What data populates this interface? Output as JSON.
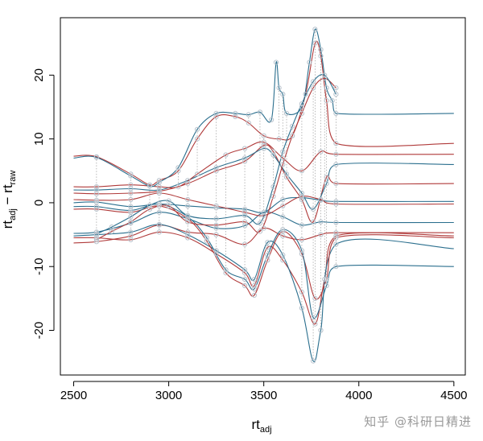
{
  "chart_data": {
    "type": "line",
    "title": "",
    "xlabel": {
      "main": "rt",
      "sub": "adj"
    },
    "ylabel": {
      "main_a": "rt",
      "sub_a": "adj",
      "sep": " − ",
      "main_b": "rt",
      "sub_b": "raw"
    },
    "xlim": [
      2430,
      4560
    ],
    "ylim": [
      -27,
      29
    ],
    "xticks": [
      2500,
      3000,
      3500,
      4000,
      4500
    ],
    "yticks": [
      -20,
      -10,
      0,
      10,
      20
    ],
    "grid": false,
    "legend": "none",
    "point_color": "#b8c2cc",
    "dotted_color": "#a8a8a8",
    "series": [
      {
        "color": "#2b6f8e",
        "points": [
          [
            2500,
            -4.8
          ],
          [
            2620,
            -4.6
          ],
          [
            2800,
            -3.2
          ],
          [
            2950,
            -1.5
          ],
          [
            3100,
            -2.5
          ],
          [
            3250,
            -4.0
          ],
          [
            3400,
            -3.6
          ],
          [
            3500,
            -1.5
          ],
          [
            3600,
            -2.2
          ],
          [
            3700,
            -3.5
          ],
          [
            3800,
            -3.0
          ],
          [
            3880,
            -3.1
          ],
          [
            4500,
            -3.1
          ]
        ]
      },
      {
        "color": "#b03a3a",
        "points": [
          [
            2500,
            -6.3
          ],
          [
            2620,
            -6.1
          ],
          [
            2800,
            -5.2
          ],
          [
            2950,
            -3.5
          ],
          [
            3100,
            -4.6
          ],
          [
            3250,
            -5.0
          ],
          [
            3400,
            -6.5
          ],
          [
            3500,
            -4.0
          ],
          [
            3600,
            -5.2
          ],
          [
            3700,
            -5.8
          ],
          [
            3800,
            -5.0
          ],
          [
            3880,
            -4.7
          ],
          [
            4500,
            -4.7
          ]
        ]
      },
      {
        "color": "#b03a3a",
        "points": [
          [
            2500,
            -5.5
          ],
          [
            2620,
            -5.5
          ],
          [
            2800,
            -5.8
          ],
          [
            2950,
            -4.6
          ],
          [
            3100,
            -5.5
          ],
          [
            3250,
            -8.0
          ],
          [
            3400,
            -11.0
          ],
          [
            3450,
            -13.0
          ],
          [
            3520,
            -7.0
          ],
          [
            3600,
            -9.0
          ],
          [
            3700,
            -14.0
          ],
          [
            3770,
            -19.0
          ],
          [
            3820,
            -12.0
          ],
          [
            3880,
            -5.2
          ],
          [
            4500,
            -5.2
          ]
        ]
      },
      {
        "color": "#2b6f8e",
        "points": [
          [
            2500,
            -5.2
          ],
          [
            2620,
            -5.0
          ],
          [
            2800,
            -4.6
          ],
          [
            2950,
            -3.4
          ],
          [
            3100,
            -5.0
          ],
          [
            3250,
            -7.5
          ],
          [
            3400,
            -10.5
          ],
          [
            3450,
            -12.0
          ],
          [
            3520,
            -6.2
          ],
          [
            3600,
            -8.2
          ],
          [
            3700,
            -16.5
          ],
          [
            3760,
            -24.8
          ],
          [
            3800,
            -20.0
          ],
          [
            3880,
            -6.5
          ],
          [
            4500,
            -7.2
          ]
        ]
      },
      {
        "color": "#b03a3a",
        "points": [
          [
            2500,
            -1.0
          ],
          [
            2620,
            -1.0
          ],
          [
            2800,
            -1.5
          ],
          [
            2950,
            -0.5
          ],
          [
            3100,
            -2.5
          ],
          [
            3200,
            -6.0
          ],
          [
            3300,
            -11.0
          ],
          [
            3400,
            -13.0
          ],
          [
            3450,
            -14.5
          ],
          [
            3520,
            -9.0
          ],
          [
            3600,
            -4.5
          ],
          [
            3700,
            -8.0
          ],
          [
            3770,
            -15.0
          ],
          [
            3830,
            -12.0
          ],
          [
            3880,
            -5.5
          ],
          [
            4500,
            -5.5
          ]
        ]
      },
      {
        "color": "#2b6f8e",
        "points": [
          [
            2500,
            -0.6
          ],
          [
            2620,
            -0.6
          ],
          [
            2800,
            -1.2
          ],
          [
            2950,
            -0.2
          ],
          [
            3100,
            -2.2
          ],
          [
            3200,
            -5.5
          ],
          [
            3300,
            -10.5
          ],
          [
            3400,
            -12.0
          ],
          [
            3450,
            -13.5
          ],
          [
            3520,
            -8.2
          ],
          [
            3600,
            -4.2
          ],
          [
            3700,
            -7.5
          ],
          [
            3760,
            -18.0
          ],
          [
            3830,
            -13.0
          ],
          [
            3880,
            -10.0
          ],
          [
            4500,
            -10.0
          ]
        ]
      },
      {
        "color": "#2b6f8e",
        "points": [
          [
            2500,
            0.0
          ],
          [
            2620,
            0.1
          ],
          [
            2800,
            -0.6
          ],
          [
            2950,
            -0.2
          ],
          [
            3100,
            -0.5
          ],
          [
            3250,
            -0.8
          ],
          [
            3400,
            -1.0
          ],
          [
            3500,
            -1.5
          ],
          [
            3600,
            0.5
          ],
          [
            3700,
            0.8
          ],
          [
            3800,
            0.4
          ],
          [
            3880,
            0.2
          ],
          [
            4500,
            0.2
          ]
        ]
      },
      {
        "color": "#b03a3a",
        "points": [
          [
            2500,
            0.5
          ],
          [
            2620,
            0.4
          ],
          [
            2800,
            0.5
          ],
          [
            2950,
            1.5
          ],
          [
            3100,
            0.5
          ],
          [
            3250,
            -0.5
          ],
          [
            3400,
            -1.5
          ],
          [
            3500,
            -2.0
          ],
          [
            3600,
            -0.5
          ],
          [
            3700,
            1.0
          ],
          [
            3800,
            0.5
          ],
          [
            3880,
            -0.2
          ],
          [
            4500,
            -0.2
          ]
        ]
      },
      {
        "color": "#b03a3a",
        "points": [
          [
            2500,
            1.5
          ],
          [
            2620,
            1.4
          ],
          [
            2800,
            1.5
          ],
          [
            2950,
            1.8
          ],
          [
            3100,
            3.0
          ],
          [
            3250,
            5.0
          ],
          [
            3400,
            6.5
          ],
          [
            3500,
            9.0
          ],
          [
            3550,
            8.0
          ],
          [
            3620,
            4.0
          ],
          [
            3700,
            0.5
          ],
          [
            3760,
            -3.0
          ],
          [
            3830,
            4.0
          ],
          [
            3880,
            3.0
          ],
          [
            4500,
            3.0
          ]
        ]
      },
      {
        "color": "#2b6f8e",
        "points": [
          [
            2500,
            2.0
          ],
          [
            2620,
            2.0
          ],
          [
            2800,
            2.2
          ],
          [
            2950,
            2.0
          ],
          [
            3100,
            3.5
          ],
          [
            3250,
            5.5
          ],
          [
            3400,
            7.0
          ],
          [
            3500,
            8.5
          ],
          [
            3550,
            7.5
          ],
          [
            3620,
            4.5
          ],
          [
            3700,
            1.5
          ],
          [
            3760,
            -1.0
          ],
          [
            3830,
            3.0
          ],
          [
            3880,
            6.0
          ],
          [
            4500,
            6.0
          ]
        ]
      },
      {
        "color": "#b03a3a",
        "points": [
          [
            2500,
            2.5
          ],
          [
            2620,
            2.5
          ],
          [
            2800,
            2.8
          ],
          [
            2950,
            2.5
          ],
          [
            3050,
            2.5
          ],
          [
            3150,
            4.5
          ],
          [
            3300,
            7.5
          ],
          [
            3400,
            8.5
          ],
          [
            3500,
            9.5
          ],
          [
            3600,
            7.0
          ],
          [
            3700,
            5.0
          ],
          [
            3800,
            8.0
          ],
          [
            3880,
            7.6
          ],
          [
            4500,
            7.6
          ]
        ]
      },
      {
        "color": "#b03a3a",
        "points": [
          [
            2500,
            7.3
          ],
          [
            2620,
            7.2
          ],
          [
            2800,
            4.5
          ],
          [
            2900,
            2.8
          ],
          [
            2950,
            3.5
          ],
          [
            3050,
            5.0
          ],
          [
            3150,
            10.0
          ],
          [
            3250,
            13.5
          ],
          [
            3350,
            13.5
          ],
          [
            3420,
            12.5
          ],
          [
            3500,
            10.5
          ],
          [
            3580,
            10.0
          ],
          [
            3650,
            10.5
          ],
          [
            3720,
            17.0
          ],
          [
            3770,
            25.0
          ],
          [
            3800,
            23.0
          ],
          [
            3830,
            16.0
          ],
          [
            3880,
            9.3
          ],
          [
            4500,
            9.3
          ]
        ]
      },
      {
        "color": "#2b6f8e",
        "points": [
          [
            2500,
            7.0
          ],
          [
            2620,
            7.1
          ],
          [
            2800,
            4.2
          ],
          [
            2900,
            2.6
          ],
          [
            2950,
            3.2
          ],
          [
            3050,
            5.5
          ],
          [
            3150,
            11.5
          ],
          [
            3250,
            14.0
          ],
          [
            3350,
            14.0
          ],
          [
            3420,
            13.8
          ],
          [
            3480,
            14.2
          ],
          [
            3540,
            13.0
          ],
          [
            3565,
            22.0
          ],
          [
            3580,
            18.0
          ],
          [
            3600,
            17.0
          ],
          [
            3620,
            14.0
          ],
          [
            3700,
            15.0
          ],
          [
            3740,
            22.0
          ],
          [
            3770,
            27.2
          ],
          [
            3800,
            24.0
          ],
          [
            3830,
            18.0
          ],
          [
            3860,
            16.0
          ],
          [
            3880,
            14.0
          ],
          [
            4500,
            14.0
          ]
        ]
      },
      {
        "color": "#b03a3a",
        "points": [
          [
            2620,
            -5.8
          ],
          [
            2700,
            -4.5
          ],
          [
            2800,
            -3.0
          ],
          [
            2900,
            -1.0
          ],
          [
            3000,
            -0.5
          ],
          [
            3100,
            -3.0
          ],
          [
            3250,
            -3.5
          ],
          [
            3400,
            -3.0
          ],
          [
            3480,
            -4.5
          ],
          [
            3550,
            1.0
          ],
          [
            3600,
            6.0
          ],
          [
            3650,
            10.5
          ],
          [
            3700,
            14.0
          ],
          [
            3760,
            18.0
          ],
          [
            3820,
            19.5
          ],
          [
            3880,
            18.0
          ]
        ]
      },
      {
        "color": "#2b6f8e",
        "points": [
          [
            2620,
            -4.9
          ],
          [
            2700,
            -3.8
          ],
          [
            2800,
            -2.2
          ],
          [
            2900,
            -0.4
          ],
          [
            3000,
            0.3
          ],
          [
            3100,
            -2.0
          ],
          [
            3250,
            -2.5
          ],
          [
            3400,
            -2.0
          ],
          [
            3480,
            -3.2
          ],
          [
            3550,
            2.5
          ],
          [
            3600,
            8.0
          ],
          [
            3650,
            12.0
          ],
          [
            3700,
            15.5
          ],
          [
            3760,
            19.0
          ],
          [
            3820,
            20.0
          ],
          [
            3880,
            17.0
          ]
        ]
      }
    ]
  },
  "watermark": "知乎 @科研日精进"
}
